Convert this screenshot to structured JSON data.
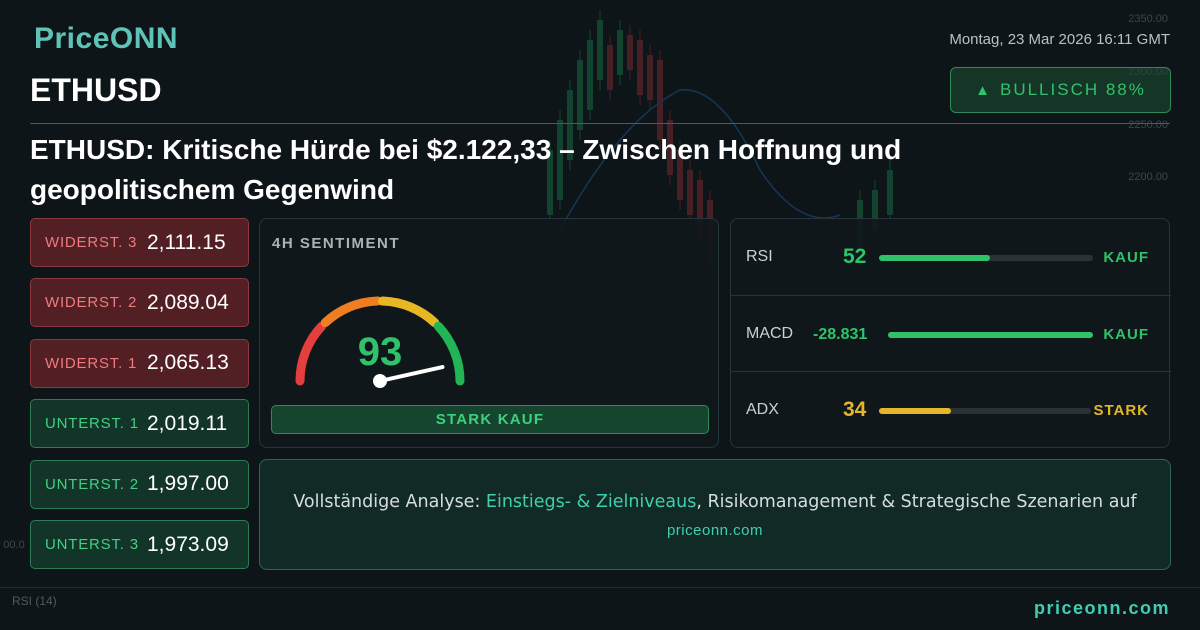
{
  "brand": {
    "logo": "PriceONN",
    "footer_site": "priceonn.com"
  },
  "header": {
    "date": "Montag, 23 Mar 2026 16:11 GMT",
    "symbol": "ETHUSD",
    "badge": {
      "arrow": "▲",
      "label": "BULLISCH 88%"
    },
    "headline": "ETHUSD: Kritische Hürde bei $2.122,33 – Zwischen Hoffnung und geopolitischem Gegenwind"
  },
  "levels": [
    {
      "type": "resistance",
      "label": "WIDERST. 3",
      "value": "2,111.15"
    },
    {
      "type": "resistance",
      "label": "WIDERST. 2",
      "value": "2,089.04"
    },
    {
      "type": "resistance",
      "label": "WIDERST. 1",
      "value": "2,065.13"
    },
    {
      "type": "support",
      "label": "UNTERST. 1",
      "value": "2,019.11"
    },
    {
      "type": "support",
      "label": "UNTERST. 2",
      "value": "1,997.00"
    },
    {
      "type": "support",
      "label": "UNTERST. 3",
      "value": "1,973.09"
    }
  ],
  "sentiment": {
    "title": "4H SENTIMENT",
    "score": 93,
    "signal": "STARK KAUF"
  },
  "indicators": [
    {
      "name": "RSI",
      "value": "52",
      "signal": "KAUF",
      "level": 0.52,
      "color": "#2fc26b"
    },
    {
      "name": "MACD",
      "value": "-28.831",
      "signal": "KAUF",
      "level": 1.0,
      "color": "#2fc26b"
    },
    {
      "name": "ADX",
      "value": "34",
      "signal": "STARK",
      "level": 0.34,
      "color": "#e6b62a"
    }
  ],
  "cta": {
    "prefix": "Vollständige Analyse: ",
    "link": "Einstiegs- & Zielniveaus",
    "suffix": ", Risikomanagement & Strategische Szenarien auf",
    "site": "priceonn.com"
  },
  "background_chart": {
    "price_labels": [
      "2350.00",
      "2300.00",
      "2250.00",
      "2200.00",
      "00.0"
    ],
    "rsi_label": "RSI",
    "rsi_period": "(14)"
  },
  "colors": {
    "accent": "#3fcfb0",
    "bullish": "#2fc26b",
    "bearish": "#f07a7e",
    "warning": "#e6b62a"
  }
}
